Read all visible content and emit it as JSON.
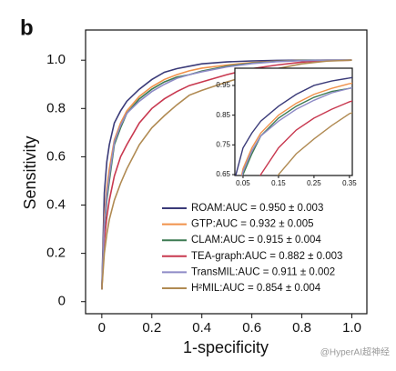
{
  "chart_data": {
    "type": "line",
    "panel_label": "b",
    "xlabel": "1-specificity",
    "ylabel": "Sensitivity",
    "watermark": "@HyperAI超神经",
    "legend": "lower right",
    "xlim": [
      -0.065,
      1.06
    ],
    "ylim": [
      -0.05,
      1.125
    ],
    "xticks": [
      0,
      0.2,
      0.4,
      0.6,
      0.8,
      {
        "value": 1,
        "label": "1.0"
      }
    ],
    "yticks": [
      0,
      0.2,
      0.4,
      0.6,
      0.8,
      {
        "value": 1,
        "label": "1.0"
      }
    ],
    "x": [
      0,
      0.01,
      0.02,
      0.03,
      0.05,
      0.075,
      0.1,
      0.15,
      0.2,
      0.25,
      0.3,
      0.35,
      0.4,
      0.5,
      0.6,
      0.7,
      0.8,
      0.9,
      1.0
    ],
    "series": [
      {
        "name": "ROAM:AUC = 0.950 ± 0.003",
        "color": "#3a3a78",
        "values": [
          0.05,
          0.45,
          0.58,
          0.65,
          0.74,
          0.79,
          0.83,
          0.88,
          0.92,
          0.95,
          0.965,
          0.975,
          0.985,
          0.993,
          0.997,
          0.999,
          1,
          1,
          1
        ]
      },
      {
        "name": "GTP:AUC = 0.932 ± 0.005",
        "color": "#f0914a",
        "values": [
          0.05,
          0.35,
          0.47,
          0.55,
          0.67,
          0.74,
          0.79,
          0.85,
          0.89,
          0.92,
          0.94,
          0.956,
          0.967,
          0.98,
          0.99,
          0.996,
          0.999,
          1,
          1
        ]
      },
      {
        "name": "CLAM:AUC = 0.915 ± 0.004",
        "color": "#3d7a52",
        "values": [
          0.05,
          0.3,
          0.42,
          0.5,
          0.65,
          0.72,
          0.78,
          0.84,
          0.88,
          0.91,
          0.93,
          0.94,
          0.955,
          0.975,
          0.988,
          0.995,
          0.999,
          1,
          1
        ]
      },
      {
        "name": "TEA-graph:AUC = 0.882 ± 0.003",
        "color": "#c8384f",
        "values": [
          0.05,
          0.25,
          0.35,
          0.42,
          0.52,
          0.6,
          0.65,
          0.74,
          0.8,
          0.84,
          0.87,
          0.895,
          0.91,
          0.94,
          0.965,
          0.98,
          0.992,
          0.998,
          1
        ]
      },
      {
        "name": "TransMIL:AUC = 0.911 ± 0.002",
        "color": "#8e8bc6",
        "values": [
          0.05,
          0.32,
          0.44,
          0.52,
          0.66,
          0.73,
          0.78,
          0.83,
          0.87,
          0.9,
          0.925,
          0.94,
          0.952,
          0.972,
          0.986,
          0.994,
          0.998,
          1,
          1
        ]
      },
      {
        "name": "H²MIL:AUC = 0.854 ± 0.004",
        "color": "#b08a52",
        "values": [
          0.05,
          0.2,
          0.28,
          0.34,
          0.42,
          0.49,
          0.55,
          0.65,
          0.72,
          0.77,
          0.815,
          0.855,
          0.875,
          0.91,
          0.94,
          0.965,
          0.985,
          0.996,
          1
        ]
      }
    ],
    "inset": {
      "xlim": [
        0.027,
        0.358
      ],
      "ylim": [
        0.647,
        1.008
      ],
      "xticks": [
        0.05,
        0.15,
        0.25,
        0.35
      ],
      "yticks": [
        0.65,
        0.75,
        0.85,
        0.95
      ]
    }
  }
}
